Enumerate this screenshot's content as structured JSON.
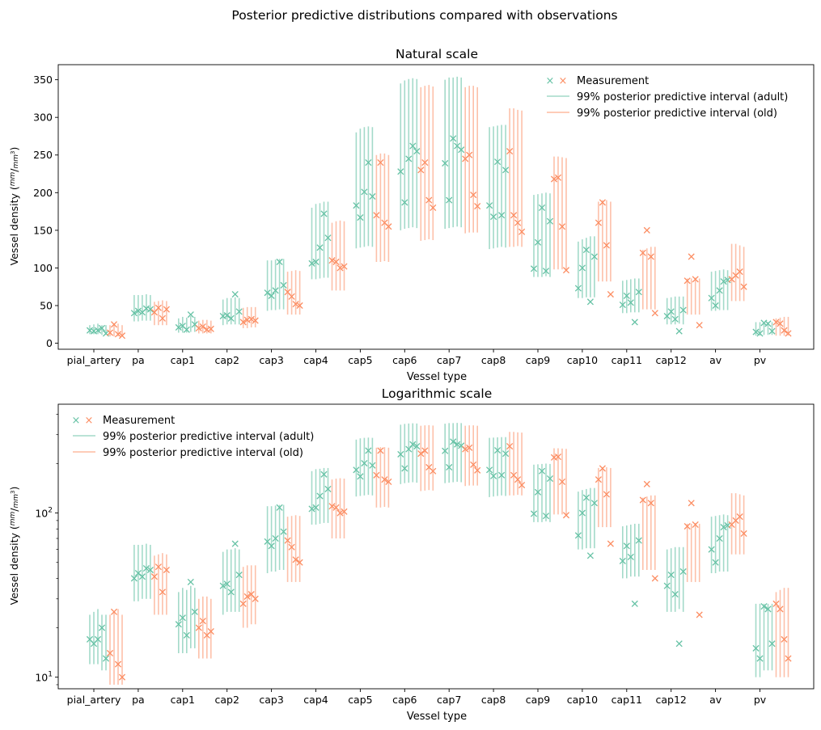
{
  "suptitle": "Posterior predictive distributions compared with observations",
  "legend": {
    "measurement": "Measurement",
    "adult": "99% posterior predictive interval (adult)",
    "old": "99% posterior predictive interval (old)"
  },
  "colors": {
    "adult": "#66c2a5",
    "old": "#fc8d62"
  },
  "ylabel_prefix": "Vessel density (",
  "ylabel_num": "mm",
  "ylabel_den": "mm",
  "ylabel_den_exp": "3",
  "ylabel_suffix": ")",
  "chart_data": [
    {
      "type": "scatter",
      "title": "Natural scale",
      "xlabel": "Vessel type",
      "yscale": "linear",
      "ylim": [
        -8,
        370
      ],
      "yticks": [
        0,
        50,
        100,
        150,
        200,
        250,
        300,
        350
      ],
      "legend_position": "upper right",
      "categories": [
        "pial_artery",
        "pa",
        "cap1",
        "cap2",
        "cap3",
        "cap4",
        "cap5",
        "cap6",
        "cap7",
        "cap8",
        "cap9",
        "cap10",
        "cap11",
        "cap12",
        "av",
        "pv"
      ],
      "series": [
        {
          "name": "adult",
          "measurements": [
            [
              17,
              16,
              17,
              20,
              13
            ],
            [
              40,
              43,
              41,
              46,
              45
            ],
            [
              21,
              23,
              18,
              38,
              25
            ],
            [
              36,
              37,
              33,
              65,
              42
            ],
            [
              67,
              63,
              70,
              108,
              77
            ],
            [
              106,
              108,
              127,
              172,
              140
            ],
            [
              183,
              167,
              201,
              240,
              195
            ],
            [
              228,
              187,
              245,
              262,
              255
            ],
            [
              239,
              190,
              272,
              262,
              257
            ],
            [
              183,
              168,
              241,
              170,
              230
            ],
            [
              99,
              134,
              180,
              96,
              162
            ],
            [
              73,
              100,
              124,
              55,
              115
            ],
            [
              51,
              63,
              54,
              28,
              68
            ],
            [
              36,
              42,
              32,
              16,
              44
            ],
            [
              60,
              50,
              70,
              82,
              84
            ],
            [
              15,
              13,
              27,
              26,
              16
            ]
          ],
          "intervals": [
            [
              [
                12,
                24
              ],
              [
                12,
                25
              ],
              [
                12,
                26
              ],
              [
                11,
                24
              ],
              [
                11,
                24
              ]
            ],
            [
              [
                29,
                64
              ],
              [
                29,
                64
              ],
              [
                30,
                64
              ],
              [
                30,
                65
              ],
              [
                30,
                64
              ]
            ],
            [
              [
                14,
                33
              ],
              [
                14,
                35
              ],
              [
                14,
                34
              ],
              [
                15,
                36
              ],
              [
                15,
                35
              ]
            ],
            [
              [
                24,
                58
              ],
              [
                25,
                60
              ],
              [
                25,
                60
              ],
              [
                25,
                61
              ],
              [
                25,
                60
              ]
            ],
            [
              [
                43,
                110
              ],
              [
                44,
                110
              ],
              [
                44,
                111
              ],
              [
                45,
                112
              ],
              [
                45,
                112
              ]
            ],
            [
              [
                85,
                180
              ],
              [
                85,
                185
              ],
              [
                86,
                186
              ],
              [
                87,
                188
              ],
              [
                87,
                188
              ]
            ],
            [
              [
                126,
                280
              ],
              [
                127,
                285
              ],
              [
                128,
                287
              ],
              [
                129,
                288
              ],
              [
                128,
                287
              ]
            ],
            [
              [
                150,
                345
              ],
              [
                152,
                349
              ],
              [
                153,
                351
              ],
              [
                154,
                352
              ],
              [
                153,
                351
              ]
            ],
            [
              [
                152,
                350
              ],
              [
                153,
                353
              ],
              [
                154,
                353
              ],
              [
                155,
                354
              ],
              [
                154,
                353
              ]
            ],
            [
              [
                125,
                287
              ],
              [
                126,
                288
              ],
              [
                127,
                289
              ],
              [
                128,
                290
              ],
              [
                127,
                290
              ]
            ],
            [
              [
                88,
                197
              ],
              [
                88,
                198
              ],
              [
                88,
                199
              ],
              [
                89,
                200
              ],
              [
                88,
                199
              ]
            ],
            [
              [
                60,
                135
              ],
              [
                60,
                138
              ],
              [
                61,
                140
              ],
              [
                61,
                142
              ],
              [
                61,
                142
              ]
            ],
            [
              [
                40,
                83
              ],
              [
                40,
                84
              ],
              [
                41,
                85
              ],
              [
                41,
                86
              ],
              [
                41,
                86
              ]
            ],
            [
              [
                25,
                60
              ],
              [
                25,
                61
              ],
              [
                25,
                62
              ],
              [
                26,
                62
              ],
              [
                25,
                62
              ]
            ],
            [
              [
                43,
                95
              ],
              [
                43,
                96
              ],
              [
                44,
                97
              ],
              [
                44,
                98
              ],
              [
                44,
                97
              ]
            ],
            [
              [
                10,
                28
              ],
              [
                10,
                28
              ],
              [
                11,
                28
              ],
              [
                11,
                28
              ],
              [
                11,
                28
              ]
            ]
          ]
        },
        {
          "name": "old",
          "measurements": [
            [
              14,
              25,
              12,
              10
            ],
            [
              41,
              47,
              33,
              45
            ],
            [
              20,
              22,
              18,
              19
            ],
            [
              28,
              31,
              32,
              30
            ],
            [
              68,
              62,
              52,
              50
            ],
            [
              110,
              108,
              100,
              102
            ],
            [
              170,
              240,
              160,
              155
            ],
            [
              230,
              240,
              190,
              180
            ],
            [
              245,
              250,
              197,
              182
            ],
            [
              255,
              170,
              160,
              148
            ],
            [
              218,
              220,
              155,
              97
            ],
            [
              160,
              187,
              130,
              65
            ],
            [
              120,
              150,
              115,
              40
            ],
            [
              83,
              115,
              85,
              24
            ],
            [
              85,
              90,
              95,
              75
            ],
            [
              28,
              26,
              17,
              13
            ]
          ],
          "intervals": [
            [
              [
                9,
                24
              ],
              [
                9,
                25
              ],
              [
                9,
                26
              ],
              [
                9,
                24
              ]
            ],
            [
              [
                24,
                55
              ],
              [
                24,
                56
              ],
              [
                24,
                57
              ],
              [
                24,
                56
              ]
            ],
            [
              [
                13,
                30
              ],
              [
                13,
                31
              ],
              [
                13,
                31
              ],
              [
                13,
                30
              ]
            ],
            [
              [
                20,
                47
              ],
              [
                20,
                48
              ],
              [
                21,
                48
              ],
              [
                21,
                48
              ]
            ],
            [
              [
                38,
                95
              ],
              [
                38,
                96
              ],
              [
                38,
                97
              ],
              [
                38,
                96
              ]
            ],
            [
              [
                70,
                160
              ],
              [
                70,
                162
              ],
              [
                70,
                163
              ],
              [
                70,
                162
              ]
            ],
            [
              [
                108,
                250
              ],
              [
                108,
                252
              ],
              [
                109,
                252
              ],
              [
                108,
                250
              ]
            ],
            [
              [
                136,
                340
              ],
              [
                137,
                342
              ],
              [
                138,
                343
              ],
              [
                137,
                341
              ]
            ],
            [
              [
                146,
                340
              ],
              [
                147,
                342
              ],
              [
                147,
                342
              ],
              [
                147,
                340
              ]
            ],
            [
              [
                128,
                312
              ],
              [
                128,
                312
              ],
              [
                129,
                310
              ],
              [
                128,
                309
              ]
            ],
            [
              [
                98,
                248
              ],
              [
                98,
                248
              ],
              [
                98,
                247
              ],
              [
                98,
                246
              ]
            ],
            [
              [
                82,
                188
              ],
              [
                82,
                190
              ],
              [
                82,
                190
              ],
              [
                82,
                188
              ]
            ],
            [
              [
                45,
                124
              ],
              [
                45,
                126
              ],
              [
                45,
                128
              ],
              [
                45,
                128
              ]
            ],
            [
              [
                38,
                86
              ],
              [
                38,
                86
              ],
              [
                38,
                87
              ],
              [
                38,
                86
              ]
            ],
            [
              [
                56,
                132
              ],
              [
                56,
                132
              ],
              [
                56,
                130
              ],
              [
                56,
                128
              ]
            ],
            [
              [
                10,
                33
              ],
              [
                10,
                34
              ],
              [
                10,
                35
              ],
              [
                10,
                35
              ]
            ]
          ]
        }
      ]
    },
    {
      "type": "scatter",
      "title": "Logarithmic scale",
      "xlabel": "Vessel type",
      "yscale": "log",
      "ylim": [
        8.5,
        460
      ],
      "yticks": [
        10,
        100
      ],
      "legend_position": "upper left",
      "categories": [
        "pial_artery",
        "pa",
        "cap1",
        "cap2",
        "cap3",
        "cap4",
        "cap5",
        "cap6",
        "cap7",
        "cap8",
        "cap9",
        "cap10",
        "cap11",
        "cap12",
        "av",
        "pv"
      ],
      "series_ref": "same values as Natural scale chart"
    }
  ]
}
